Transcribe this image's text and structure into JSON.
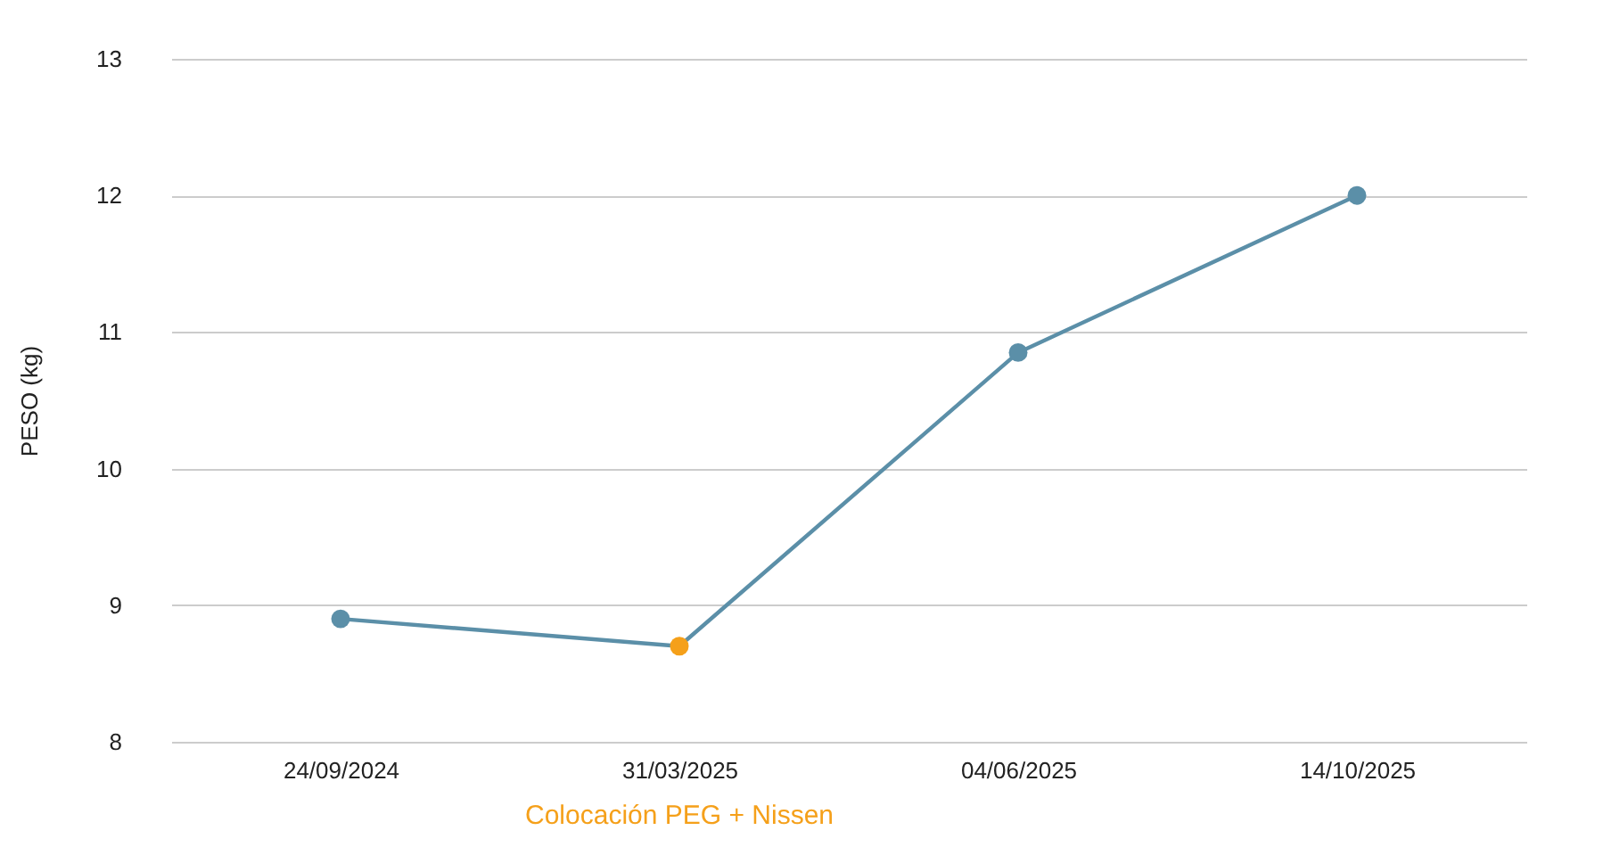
{
  "chart_data": {
    "type": "line",
    "ylabel": "PESO (kg)",
    "categories": [
      "24/09/2024",
      "31/03/2025",
      "04/06/2025",
      "14/10/2025"
    ],
    "series": [
      {
        "color": "#5b8fa8",
        "values": [
          8.9,
          8.7,
          10.85,
          12
        ],
        "colors": [
          "#5b8fa8",
          "#f5a01a",
          "#5b8fa8",
          "#5b8fa8"
        ]
      }
    ],
    "ylim": [
      8,
      13
    ],
    "yticks": [
      8,
      9,
      10,
      11,
      12,
      13
    ],
    "grid": "y",
    "marker": "circle",
    "line_style": "solid",
    "annotations": [
      "Colocación PEG + Nissen"
    ]
  }
}
